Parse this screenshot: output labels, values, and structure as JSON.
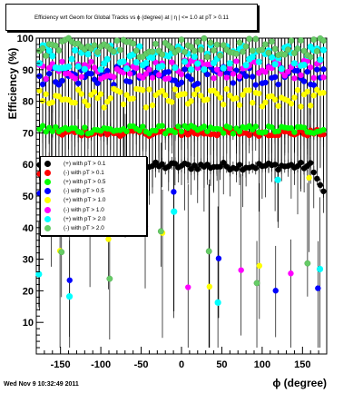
{
  "title": "Efficiency wrt Geom for Global Tracks vs ϕ (degree) at |  η | <= 1.0 at pT > 0.11",
  "footer": "Wed Nov  9 10:32:49 2011",
  "chart_data": {
    "type": "scatter",
    "xlabel": "ϕ (degree)",
    "ylabel": "Efficiency (%)",
    "xlim": [
      -180,
      180
    ],
    "ylim": [
      0,
      100
    ],
    "x_ticks": [
      -150,
      -100,
      -50,
      0,
      50,
      100,
      150
    ],
    "x_tick_labels": [
      "-150",
      "-100",
      "-50",
      "0",
      "50",
      "100",
      "150"
    ],
    "y_ticks": [
      10,
      20,
      30,
      40,
      50,
      60,
      70,
      80,
      90,
      100
    ],
    "y_tick_labels": [
      "10",
      "20",
      "30",
      "40",
      "50",
      "60",
      "70",
      "80",
      "90",
      "100"
    ],
    "grid": false,
    "legend_position": "left-middle",
    "series": [
      {
        "name": "(+) with pT > 0.1",
        "color": "#000000",
        "level": 59.5,
        "spread": 1.2
      },
      {
        "name": "(-) with pT > 0.1",
        "color": "#ff0000",
        "level": 70,
        "spread": 1.0
      },
      {
        "name": "(+) with pT > 0.5",
        "color": "#00ff00",
        "level": 71,
        "spread": 1.3
      },
      {
        "name": "(-) with pT > 0.5",
        "color": "#0000ff",
        "level": 88,
        "spread": 3.0
      },
      {
        "name": "(+) with pT > 1.0",
        "color": "#ffff00",
        "level": 81,
        "spread": 3.0
      },
      {
        "name": "(-) with pT > 1.0",
        "color": "#ff00ff",
        "level": 90,
        "spread": 3.0
      },
      {
        "name": "(+) with pT > 2.0",
        "color": "#00ffff",
        "level": 94,
        "spread": 4.0
      },
      {
        "name": "(-) with pT > 2.0",
        "color": "#66cc66",
        "level": 97,
        "spread": 3.0
      }
    ]
  }
}
